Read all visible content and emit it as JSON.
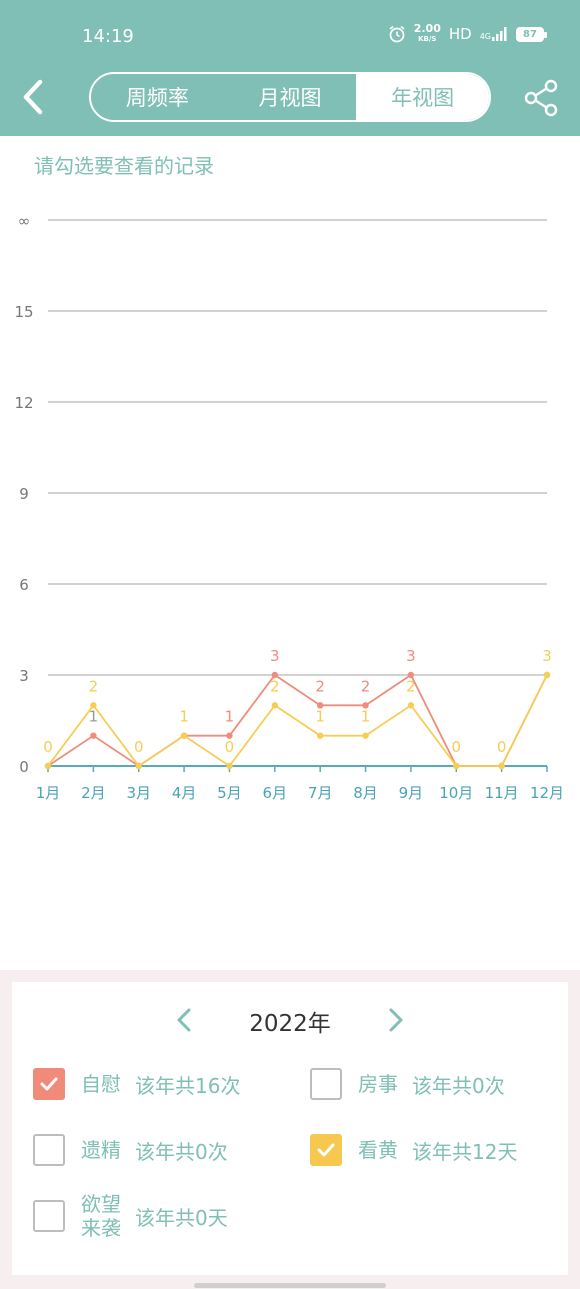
{
  "status_bar": {
    "time": "14:19",
    "net_speed": "2.00",
    "net_unit": "KB/S",
    "hd": "HD",
    "signal": "4G",
    "battery": "87"
  },
  "header": {
    "tabs": [
      {
        "label": "周频率",
        "active": false
      },
      {
        "label": "月视图",
        "active": false
      },
      {
        "label": "年视图",
        "active": true
      }
    ],
    "back_icon": "chevron-left-icon",
    "share_icon": "share-icon"
  },
  "hint": "请勾选要查看的记录",
  "chart_data": {
    "type": "line",
    "categories": [
      "1月",
      "2月",
      "3月",
      "4月",
      "5月",
      "6月",
      "7月",
      "8月",
      "9月",
      "10月",
      "11月",
      "12月"
    ],
    "y_ticks": [
      "0",
      "3",
      "6",
      "9",
      "12",
      "15",
      "∞"
    ],
    "grid": true,
    "series": [
      {
        "color": "#ef8c7c",
        "values": [
          0,
          1,
          0,
          1,
          1,
          3,
          2,
          2,
          3,
          0,
          0,
          3
        ]
      },
      {
        "color": "#f6cd55",
        "values": [
          0,
          2,
          0,
          1,
          0,
          2,
          1,
          1,
          2,
          0,
          0,
          3
        ]
      }
    ],
    "label_values": [
      0,
      2,
      0,
      1,
      1,
      3,
      2,
      2,
      3,
      0,
      0,
      3
    ],
    "label_values_secondary": [
      null,
      1,
      null,
      null,
      0,
      2,
      1,
      1,
      2,
      null,
      null,
      null
    ]
  },
  "panel": {
    "year": "2022年",
    "prev_icon": "chevron-left-icon",
    "next_icon": "chevron-right-icon",
    "options": [
      {
        "label": "自慰",
        "count": "该年共16次",
        "checked": true,
        "color": "#f08b7a"
      },
      {
        "label": "房事",
        "count": "该年共0次",
        "checked": false
      },
      {
        "label": "遗精",
        "count": "该年共0次",
        "checked": false
      },
      {
        "label": "看黄",
        "count": "该年共12天",
        "checked": true,
        "color": "#f6c84f"
      },
      {
        "label_line1": "欲望",
        "label_line2": "来袭",
        "count": "该年共0天",
        "checked": false
      }
    ]
  }
}
